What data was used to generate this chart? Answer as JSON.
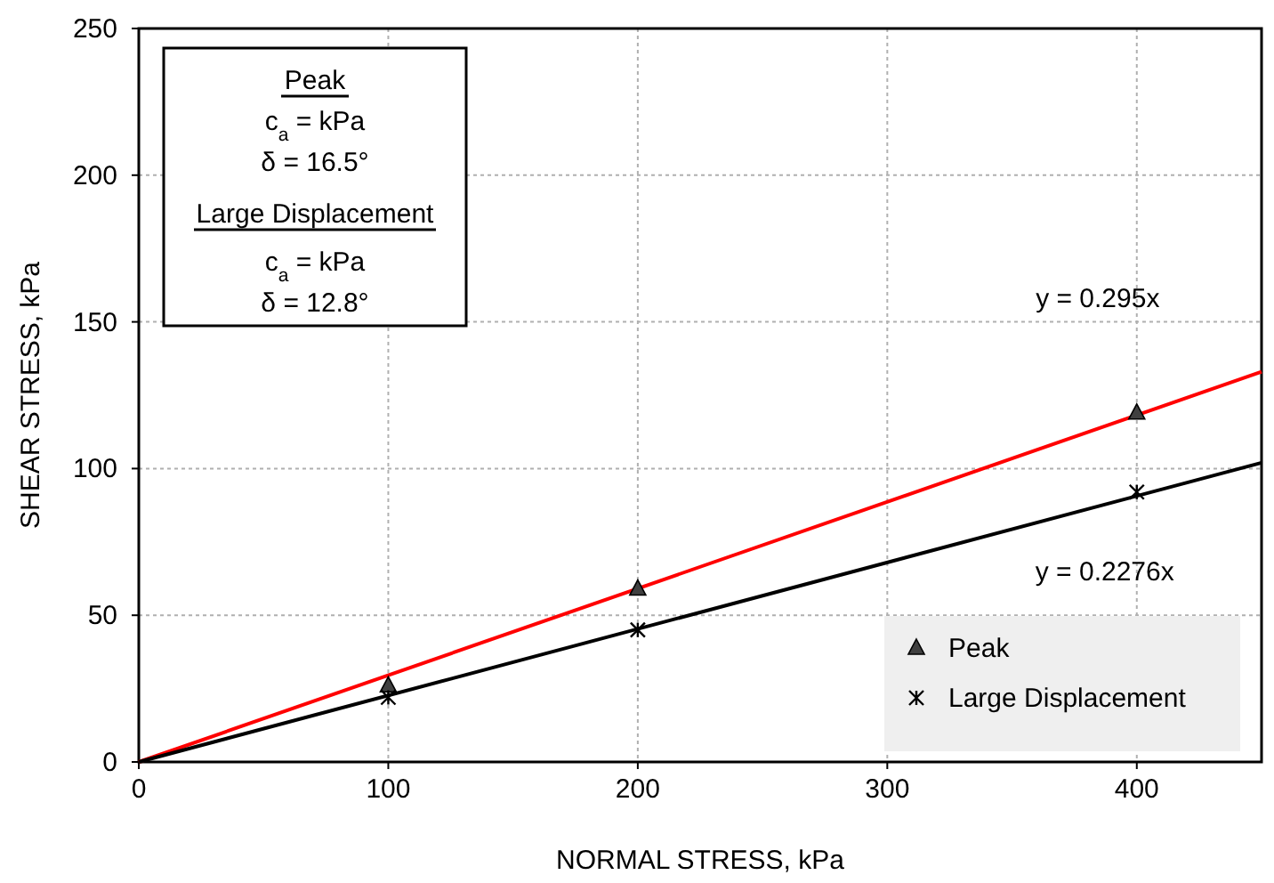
{
  "chart_data": {
    "type": "scatter",
    "xlabel": "NORMAL STRESS, kPa",
    "ylabel": "SHEAR STRESS, kPa",
    "xlim": [
      0,
      450
    ],
    "xticks": [
      0,
      100,
      200,
      300,
      400
    ],
    "ylim": [
      0,
      250
    ],
    "yticks": [
      0,
      50,
      100,
      150,
      200,
      250
    ],
    "grid": true,
    "legend": "bottom right",
    "series": [
      {
        "name": "Peak",
        "marker": "triangle",
        "color": "#404040",
        "x": [
          100,
          200,
          400
        ],
        "values": [
          26,
          59,
          119
        ]
      },
      {
        "name": "Large Displacement",
        "marker": "cross",
        "color": "#000000",
        "x": [
          100,
          200,
          400
        ],
        "values": [
          22,
          45,
          92
        ]
      },
      {
        "type": "line",
        "marker": "none",
        "color": "#ff0000",
        "x": [
          0,
          450
        ],
        "values": [
          0,
          133
        ]
      },
      {
        "type": "line",
        "marker": "none",
        "color": "#000000",
        "x": [
          0,
          450
        ],
        "values": [
          0,
          102
        ]
      }
    ],
    "annotations": [
      "Peak",
      "c$_{a}$ =  kPa",
      "δ = 16.5°",
      "Large Displacement",
      "c$_{a}$ =  kPa",
      "δ = 12.8°",
      "y = 0.295x",
      "y = 0.2276x"
    ]
  }
}
